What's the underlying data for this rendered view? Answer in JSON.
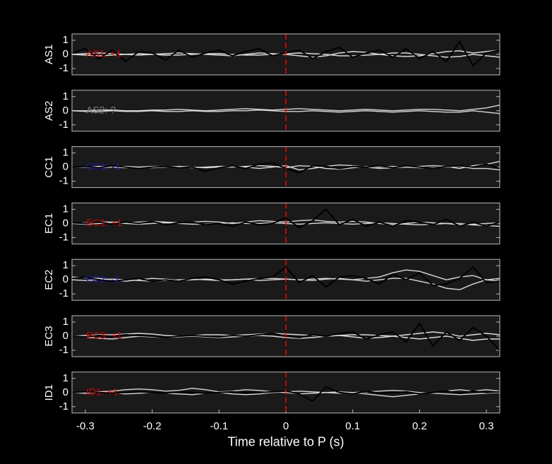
{
  "chart_data": [
    {
      "type": "line",
      "ylabel": "AS1",
      "annotation": "AS1: +1",
      "annotation_color": "#cc0000",
      "marker_x": 0,
      "marker_color": "#ff0000",
      "xlim": [
        -0.32,
        0.32
      ],
      "ylim": [
        -1.45,
        1.45
      ],
      "yticks": [
        -1,
        0,
        1
      ],
      "x": [
        -0.32,
        -0.3,
        -0.28,
        -0.26,
        -0.24,
        -0.22,
        -0.2,
        -0.18,
        -0.16,
        -0.14,
        -0.12,
        -0.1,
        -0.08,
        -0.06,
        -0.04,
        -0.02,
        0,
        0.02,
        0.04,
        0.06,
        0.08,
        0.1,
        0.12,
        0.14,
        0.16,
        0.18,
        0.2,
        0.22,
        0.24,
        0.26,
        0.28,
        0.3,
        0.32
      ],
      "series": [
        {
          "color": "#d9d9d9",
          "values": [
            0,
            0.05,
            0.1,
            0.05,
            0,
            -0.05,
            0,
            0.05,
            0.1,
            0.05,
            0,
            -0.05,
            -0.1,
            0,
            0.1,
            0.05,
            0,
            -0.1,
            -0.2,
            -0.1,
            0.1,
            0.2,
            0.15,
            0,
            -0.1,
            -0.15,
            -0.1,
            0.05,
            0.2,
            0.25,
            0.1,
            0.2,
            0.3
          ]
        },
        {
          "color": "#d9d9d9",
          "values": [
            0,
            -0.05,
            -0.1,
            -0.05,
            0,
            0.05,
            0,
            -0.05,
            -0.05,
            0,
            0.05,
            0.05,
            0,
            -0.05,
            -0.05,
            0,
            0.05,
            0.1,
            0.05,
            0,
            -0.1,
            -0.1,
            -0.05,
            0,
            0.1,
            0.1,
            0,
            -0.1,
            -0.2,
            -0.15,
            0,
            -0.1,
            -0.2
          ]
        },
        {
          "color": "#000000",
          "values": [
            0.1,
            0.4,
            -0.3,
            0.3,
            -0.5,
            0.2,
            0.1,
            -0.4,
            0.3,
            -0.2,
            0.1,
            0.3,
            -0.1,
            0.2,
            0.4,
            -0.1,
            0.1,
            0.3,
            -0.3,
            0.2,
            0.5,
            -0.2,
            0.1,
            0.3,
            -0.2,
            0.4,
            -0.3,
            0.2,
            -0.5,
            0.9,
            -0.8,
            0.1,
            0.3
          ]
        }
      ]
    },
    {
      "type": "line",
      "ylabel": "AS2",
      "annotation": "AS2: ?",
      "annotation_color": "#808080",
      "marker_x": 0,
      "marker_color": "#ff0000",
      "xlim": [
        -0.32,
        0.32
      ],
      "ylim": [
        -1.45,
        1.45
      ],
      "yticks": [
        -1,
        0,
        1
      ],
      "x": [
        -0.32,
        -0.3,
        -0.28,
        -0.26,
        -0.24,
        -0.22,
        -0.2,
        -0.18,
        -0.16,
        -0.14,
        -0.12,
        -0.1,
        -0.08,
        -0.06,
        -0.04,
        -0.02,
        0,
        0.02,
        0.04,
        0.06,
        0.08,
        0.1,
        0.12,
        0.14,
        0.16,
        0.18,
        0.2,
        0.22,
        0.24,
        0.26,
        0.28,
        0.3,
        0.32
      ],
      "series": [
        {
          "color": "#d9d9d9",
          "values": [
            0,
            0,
            0.05,
            0.05,
            0,
            0,
            0.05,
            0.05,
            0.1,
            0.05,
            0,
            0.05,
            0.1,
            0.15,
            0.1,
            0.05,
            0.1,
            0.15,
            0.1,
            0.05,
            0,
            0.05,
            0.1,
            0.05,
            0,
            0.05,
            0.1,
            0.1,
            0.05,
            0,
            0.1,
            0.2,
            0.4
          ]
        },
        {
          "color": "#d9d9d9",
          "values": [
            0,
            -0.05,
            -0.05,
            0,
            -0.05,
            -0.05,
            0,
            -0.05,
            -0.05,
            0,
            -0.05,
            -0.05,
            0,
            0,
            0.05,
            0,
            -0.05,
            -0.05,
            0,
            -0.05,
            -0.1,
            -0.05,
            0,
            -0.05,
            -0.1,
            -0.05,
            0,
            -0.05,
            -0.1,
            -0.1,
            0,
            -0.1,
            -0.2
          ]
        }
      ]
    },
    {
      "type": "line",
      "ylabel": "CC1",
      "annotation": "CC1: -1",
      "annotation_color": "#1a1aaa",
      "marker_x": 0,
      "marker_color": "#ff0000",
      "xlim": [
        -0.32,
        0.32
      ],
      "ylim": [
        -1.45,
        1.45
      ],
      "yticks": [
        -1,
        0,
        1
      ],
      "x": [
        -0.32,
        -0.3,
        -0.28,
        -0.26,
        -0.24,
        -0.22,
        -0.2,
        -0.18,
        -0.16,
        -0.14,
        -0.12,
        -0.1,
        -0.08,
        -0.06,
        -0.04,
        -0.02,
        0,
        0.02,
        0.04,
        0.06,
        0.08,
        0.1,
        0.12,
        0.14,
        0.16,
        0.18,
        0.2,
        0.22,
        0.24,
        0.26,
        0.28,
        0.3,
        0.32
      ],
      "series": [
        {
          "color": "#d9d9d9",
          "values": [
            0,
            0,
            0.05,
            0,
            -0.05,
            0,
            0.05,
            0.05,
            0,
            -0.05,
            0,
            0.05,
            0.05,
            0,
            -0.1,
            0,
            0.1,
            -0.2,
            -0.1,
            0.05,
            0.15,
            0.1,
            0,
            -0.1,
            -0.05,
            0,
            0.05,
            0.1,
            0.05,
            -0.1,
            0.1,
            0.2,
            0.4
          ]
        },
        {
          "color": "#d9d9d9",
          "values": [
            0,
            0,
            -0.05,
            0,
            0.05,
            0,
            -0.05,
            0,
            0.05,
            0,
            -0.05,
            0,
            0,
            0.05,
            0.1,
            0.05,
            -0.05,
            0.1,
            0.05,
            -0.1,
            -0.15,
            -0.05,
            0.05,
            0,
            0.05,
            0,
            -0.05,
            -0.05,
            0,
            0.05,
            -0.1,
            -0.1,
            -0.2
          ]
        },
        {
          "color": "#000000",
          "values": [
            0,
            0.05,
            -0.05,
            0.1,
            0,
            -0.1,
            0,
            0.05,
            -0.05,
            0,
            -0.3,
            -0.05,
            0.1,
            -0.1,
            0.2,
            0.3,
            -0.1,
            -0.4,
            0.1,
            0.05,
            -0.1,
            0.05,
            0,
            0.1,
            -0.05,
            0.1,
            0,
            -0.1,
            0.05,
            0.1,
            0,
            0.2,
            -0.1
          ]
        }
      ]
    },
    {
      "type": "line",
      "ylabel": "EC1",
      "annotation": "EC1: +1",
      "annotation_color": "#cc0000",
      "marker_x": 0,
      "marker_color": "#ff0000",
      "xlim": [
        -0.32,
        0.32
      ],
      "ylim": [
        -1.45,
        1.45
      ],
      "yticks": [
        -1,
        0,
        1
      ],
      "x": [
        -0.32,
        -0.3,
        -0.28,
        -0.26,
        -0.24,
        -0.22,
        -0.2,
        -0.18,
        -0.16,
        -0.14,
        -0.12,
        -0.1,
        -0.08,
        -0.06,
        -0.04,
        -0.02,
        0,
        0.02,
        0.04,
        0.06,
        0.08,
        0.1,
        0.12,
        0.14,
        0.16,
        0.18,
        0.2,
        0.22,
        0.24,
        0.26,
        0.28,
        0.3,
        0.32
      ],
      "series": [
        {
          "color": "#d9d9d9",
          "values": [
            0,
            0.05,
            0.1,
            0.1,
            0.05,
            0.1,
            0.15,
            0.1,
            0.05,
            0.1,
            0.15,
            0.1,
            0,
            0.1,
            0.2,
            0.15,
            0.1,
            0.2,
            0.25,
            0.15,
            0.1,
            0.15,
            0.1,
            0,
            -0.1,
            0,
            0.1,
            0.05,
            0,
            -0.1,
            -0.05,
            0,
            0.05
          ]
        },
        {
          "color": "#d9d9d9",
          "values": [
            0,
            -0.05,
            0,
            0.05,
            0,
            -0.05,
            0,
            0.05,
            0,
            -0.05,
            -0.05,
            0,
            0.05,
            0,
            0,
            0.05,
            0,
            -0.05,
            0,
            0.05,
            0,
            -0.05,
            0,
            0.05,
            0,
            -0.05,
            -0.1,
            -0.05,
            0,
            0,
            -0.1,
            -0.15,
            -0.2
          ]
        },
        {
          "color": "#000000",
          "values": [
            0.05,
            0,
            0.1,
            -0.05,
            0.1,
            0,
            0.15,
            -0.1,
            0.05,
            0.1,
            -0.1,
            0,
            -0.2,
            0.1,
            -0.1,
            0,
            0.4,
            -0.3,
            0.2,
            1.0,
            -0.1,
            0.3,
            -0.2,
            0.1,
            -0.2,
            0.2,
            0.1,
            -0.1,
            0.3,
            -0.2,
            0.1,
            -0.2,
            0.1
          ]
        }
      ]
    },
    {
      "type": "line",
      "ylabel": "EC2",
      "annotation": "EC2: -1",
      "annotation_color": "#1a1aaa",
      "marker_x": 0,
      "marker_color": "#ff0000",
      "xlim": [
        -0.32,
        0.32
      ],
      "ylim": [
        -1.45,
        1.45
      ],
      "yticks": [
        -1,
        0,
        1
      ],
      "x": [
        -0.32,
        -0.3,
        -0.28,
        -0.26,
        -0.24,
        -0.22,
        -0.2,
        -0.18,
        -0.16,
        -0.14,
        -0.12,
        -0.1,
        -0.08,
        -0.06,
        -0.04,
        -0.02,
        0,
        0.02,
        0.04,
        0.06,
        0.08,
        0.1,
        0.12,
        0.14,
        0.16,
        0.18,
        0.2,
        0.22,
        0.24,
        0.26,
        0.28,
        0.3,
        0.32
      ],
      "series": [
        {
          "color": "#d9d9d9",
          "values": [
            0.2,
            0.15,
            0.1,
            0,
            -0.1,
            0,
            0.1,
            0.05,
            -0.05,
            0,
            0.05,
            0,
            0,
            0.05,
            0.1,
            0.1,
            0.05,
            0,
            0.05,
            0.1,
            0.05,
            0,
            0.1,
            0.2,
            0.5,
            0.7,
            0.6,
            0.3,
            0,
            0.2,
            0.3,
            0,
            -0.1
          ]
        },
        {
          "color": "#d9d9d9",
          "values": [
            0,
            -0.05,
            0,
            0.05,
            0,
            -0.05,
            -0.1,
            -0.05,
            0,
            0.05,
            0,
            -0.05,
            0,
            0.05,
            -0.05,
            0,
            0.05,
            0,
            -0.05,
            0.05,
            0.1,
            0,
            -0.1,
            0,
            0.1,
            0.1,
            -0.1,
            -0.3,
            -0.6,
            -0.7,
            -0.3,
            0,
            0.1
          ]
        },
        {
          "color": "#000000",
          "values": [
            0.1,
            0.2,
            0,
            -0.1,
            0,
            0.1,
            -0.1,
            0,
            -0.1,
            0.1,
            0.2,
            0,
            -0.3,
            -0.1,
            0.1,
            0.2,
            0.9,
            -0.2,
            0.3,
            -0.5,
            0.2,
            0.3,
            0.1,
            -0.3,
            0.4,
            0,
            0.5,
            -0.4,
            -0.3,
            0.1,
            0.9,
            -0.2,
            -0.1
          ]
        }
      ]
    },
    {
      "type": "line",
      "ylabel": "EC3",
      "annotation": "EC3: +1",
      "annotation_color": "#cc0000",
      "marker_x": 0,
      "marker_color": "#ff0000",
      "xlim": [
        -0.32,
        0.32
      ],
      "ylim": [
        -1.45,
        1.45
      ],
      "yticks": [
        -1,
        0,
        1
      ],
      "x": [
        -0.32,
        -0.3,
        -0.28,
        -0.26,
        -0.24,
        -0.22,
        -0.2,
        -0.18,
        -0.16,
        -0.14,
        -0.12,
        -0.1,
        -0.08,
        -0.06,
        -0.04,
        -0.02,
        0,
        0.02,
        0.04,
        0.06,
        0.08,
        0.1,
        0.12,
        0.14,
        0.16,
        0.18,
        0.2,
        0.22,
        0.24,
        0.26,
        0.28,
        0.3,
        0.32
      ],
      "series": [
        {
          "color": "#d9d9d9",
          "values": [
            0,
            0.05,
            0.1,
            0.1,
            0.15,
            0.2,
            0.15,
            0.05,
            0,
            0.05,
            0.1,
            0.1,
            0.05,
            0.1,
            0.15,
            0.2,
            0.15,
            0.1,
            0.05,
            0,
            0.05,
            0.1,
            0.1,
            0.05,
            0,
            0.1,
            0.2,
            0.3,
            0.2,
            0,
            0.1,
            0.2,
            0.1
          ]
        },
        {
          "color": "#d9d9d9",
          "values": [
            0,
            -0.05,
            -0.15,
            -0.2,
            -0.1,
            0,
            -0.05,
            -0.1,
            -0.05,
            0,
            -0.05,
            -0.1,
            -0.05,
            0,
            0.05,
            0,
            -0.1,
            -0.15,
            -0.1,
            0,
            0.05,
            -0.05,
            -0.15,
            -0.1,
            0,
            -0.1,
            -0.2,
            -0.1,
            0,
            -0.15,
            -0.3,
            -0.2,
            -0.2
          ]
        },
        {
          "color": "#000000",
          "values": [
            0,
            -0.05,
            0.05,
            0,
            0.1,
            0.05,
            0,
            -0.1,
            0,
            0.05,
            0,
            -0.05,
            0.05,
            0,
            0.1,
            0.2,
            0,
            -0.1,
            0.1,
            0,
            0.2,
            0.3,
            -0.2,
            0.1,
            0.3,
            -0.4,
            0.9,
            -0.7,
            0.3,
            -0.3,
            0.6,
            0,
            -1.0
          ]
        }
      ]
    },
    {
      "type": "line",
      "ylabel": "ID1",
      "annotation": "ID1: +1",
      "annotation_color": "#cc0000",
      "marker_x": 0,
      "marker_color": "#ff0000",
      "xlabel": "Time relative to P (s)",
      "xlim": [
        -0.32,
        0.32
      ],
      "xticks": [
        -0.3,
        -0.2,
        -0.1,
        0,
        0.1,
        0.2,
        0.3
      ],
      "ylim": [
        -1.45,
        1.45
      ],
      "yticks": [
        -1,
        0,
        1
      ],
      "x": [
        -0.32,
        -0.3,
        -0.28,
        -0.26,
        -0.24,
        -0.22,
        -0.2,
        -0.18,
        -0.16,
        -0.14,
        -0.12,
        -0.1,
        -0.08,
        -0.06,
        -0.04,
        -0.02,
        0,
        0.02,
        0.04,
        0.06,
        0.08,
        0.1,
        0.12,
        0.14,
        0.16,
        0.18,
        0.2,
        0.22,
        0.24,
        0.26,
        0.28,
        0.3,
        0.32
      ],
      "series": [
        {
          "color": "#d9d9d9",
          "values": [
            0,
            0,
            0.05,
            0.1,
            0.2,
            0.25,
            0.2,
            0.1,
            0.15,
            0.3,
            0.2,
            0.05,
            0.1,
            0.2,
            0.15,
            0.05,
            0,
            -0.1,
            -0.05,
            0,
            0.05,
            0,
            -0.1,
            -0.2,
            -0.3,
            -0.2,
            -0.1,
            0,
            0.1,
            0.2,
            0.1,
            0.2,
            0.1
          ]
        },
        {
          "color": "#d9d9d9",
          "values": [
            0,
            -0.05,
            0,
            0,
            -0.1,
            -0.05,
            0,
            -0.05,
            -0.1,
            -0.15,
            -0.05,
            0,
            -0.1,
            -0.15,
            -0.1,
            0,
            0.05,
            0.1,
            0.05,
            0,
            -0.05,
            0,
            0.05,
            0.1,
            0.15,
            0.1,
            0,
            -0.05,
            -0.1,
            -0.15,
            -0.1,
            -0.05,
            0
          ]
        },
        {
          "color": "#000000",
          "values": [
            0,
            0.05,
            0,
            -0.05,
            0,
            0.05,
            0,
            -0.05,
            0.05,
            0,
            -0.05,
            0,
            0.05,
            0,
            0,
            0.05,
            0.1,
            -0.1,
            -0.6,
            0.4,
            0,
            -0.1,
            0.1,
            -0.05,
            0,
            0.05,
            -0.1,
            0,
            0.1,
            -0.05,
            0.1,
            0,
            0.05
          ]
        }
      ]
    }
  ]
}
